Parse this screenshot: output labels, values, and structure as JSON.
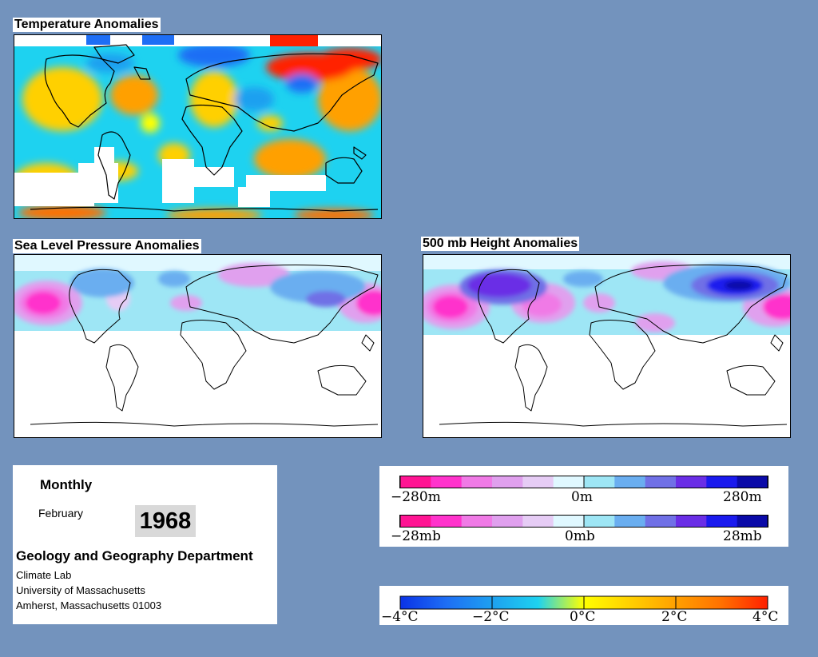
{
  "panels": {
    "temperature": {
      "title": "Temperature Anomalies"
    },
    "slp": {
      "title": "Sea Level Pressure Anomalies"
    },
    "height500": {
      "title": "500 mb Height Anomalies"
    }
  },
  "info": {
    "period": "Monthly",
    "month": "February",
    "year": "1968",
    "department": "Geology and Geography Department",
    "lab": "Climate Lab",
    "university": "University of Massachusetts",
    "address": "Amherst, Massachusetts 01003"
  },
  "legends": {
    "height": {
      "labels": [
        "−280m",
        "0m",
        "280m"
      ]
    },
    "pressure": {
      "labels": [
        "−28mb",
        "0mb",
        "28mb"
      ]
    },
    "temperature": {
      "labels": [
        "−4°C",
        "−2°C",
        "0°C",
        "2°C",
        "4°C"
      ]
    }
  },
  "colors": {
    "background": "#7393bd",
    "anomaly_scale": [
      "#ff1493",
      "#ff33cc",
      "#f07ae6",
      "#e0a0ee",
      "#e6ccf5",
      "#e0f8ff",
      "#9ee6f5",
      "#6aaef0",
      "#7070e6",
      "#6a2ee6",
      "#1a1aee",
      "#0a0aa8"
    ],
    "temperature_scale": [
      "#0a32e6",
      "#1e6ef5",
      "#1ea0f0",
      "#1ed2f0",
      "#ffff00",
      "#ffd000",
      "#ffa000",
      "#ff7000",
      "#ff2000"
    ]
  }
}
